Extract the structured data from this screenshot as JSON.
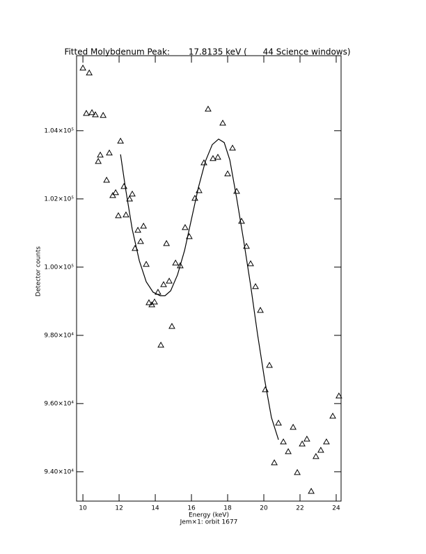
{
  "chart_data": {
    "type": "scatter",
    "title": "Fitted Molybdenum Peak:       17.8135 keV (      44 Science windows)",
    "x_label": "Energy (keV)",
    "subtitle": "Jem×1: orbit 1677",
    "y_label": "Detector counts",
    "xlim": [
      9.65,
      24.27
    ],
    "ylim": [
      93140,
      106200
    ],
    "xticks": [
      10,
      12,
      14,
      16,
      18,
      20,
      22,
      24
    ],
    "yticks": [
      {
        "value": 94000,
        "label": "9.40×10⁴"
      },
      {
        "value": 96000,
        "label": "9.60×10⁴"
      },
      {
        "value": 98000,
        "label": "9.80×10⁴"
      },
      {
        "value": 100000,
        "label": "1.00×10⁵"
      },
      {
        "value": 102000,
        "label": "1.02×10⁵"
      },
      {
        "value": 104000,
        "label": "1.04×10⁵"
      }
    ],
    "series": [
      {
        "type": "scatter",
        "marker": "triangle",
        "color": "#000000",
        "x": [
          10.0,
          10.35,
          10.19,
          10.5,
          10.69,
          11.12,
          10.85,
          10.96,
          11.31,
          11.46,
          11.65,
          11.81,
          11.96,
          12.08,
          12.27,
          12.38,
          12.58,
          12.73,
          12.88,
          13.04,
          13.19,
          13.35,
          13.5,
          13.65,
          13.81,
          13.96,
          14.15,
          14.31,
          14.46,
          14.62,
          14.77,
          14.92,
          15.12,
          15.38,
          15.65,
          15.88,
          16.19,
          16.42,
          16.69,
          16.92,
          17.19,
          17.46,
          17.73,
          18.0,
          18.27,
          18.5,
          18.77,
          19.04,
          19.27,
          19.54,
          19.81,
          20.08,
          20.31,
          20.58,
          20.81,
          21.08,
          21.35,
          21.62,
          21.85,
          22.12,
          22.38,
          22.62,
          22.88,
          23.15,
          23.46,
          23.81,
          24.15
        ],
        "values": [
          105837,
          105694,
          104510,
          104531,
          104469,
          104449,
          103102,
          103286,
          102551,
          103347,
          102102,
          102184,
          101510,
          103694,
          102367,
          101531,
          102000,
          102143,
          100551,
          101082,
          100755,
          101204,
          100082,
          98959,
          98898,
          98980,
          99265,
          97714,
          99490,
          100694,
          99592,
          98265,
          100122,
          100041,
          101163,
          100898,
          102020,
          102245,
          103061,
          104633,
          103184,
          103224,
          104224,
          102735,
          103490,
          102224,
          101347,
          100612,
          100102,
          99429,
          98735,
          96408,
          97122,
          94265,
          95429,
          94878,
          94592,
          95306,
          93980,
          94816,
          94959,
          93429,
          94449,
          94633,
          94878,
          95633,
          96224
        ]
      },
      {
        "type": "line",
        "color": "#000000",
        "x": [
          12.08,
          12.35,
          12.73,
          13.12,
          13.5,
          13.88,
          14.27,
          14.54,
          14.85,
          15.23,
          15.62,
          16.0,
          16.38,
          16.77,
          17.15,
          17.5,
          17.81,
          18.12,
          18.5,
          18.88,
          19.27,
          19.65,
          20.04,
          20.42,
          20.81
        ],
        "values": [
          103306,
          102327,
          101102,
          100184,
          99571,
          99265,
          99163,
          99163,
          99306,
          99776,
          100490,
          101408,
          102327,
          103102,
          103592,
          103755,
          103653,
          103143,
          102020,
          100796,
          99469,
          98041,
          96714,
          95592,
          94939
        ]
      }
    ]
  }
}
